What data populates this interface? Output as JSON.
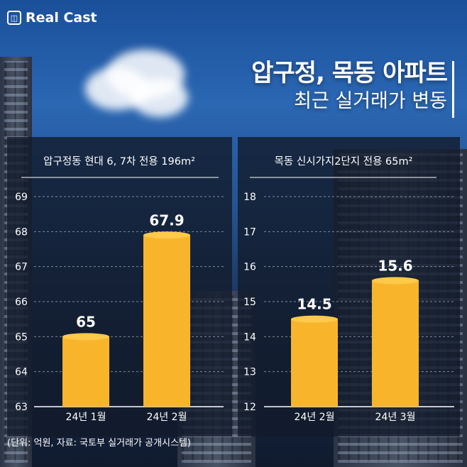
{
  "brand": {
    "name": "Real Cast"
  },
  "headline": {
    "line1": "압구정, 목동 아파트",
    "line2": "최근 실거래가 변동"
  },
  "footnote": "(단위: 억원, 자료: 국토부 실거래가 공개시스템)",
  "colors": {
    "bar": "#f8b52c",
    "bar_top": "#ffc94a",
    "text": "#ffffff",
    "grid": "#a9b4c6"
  },
  "chart_data": [
    {
      "type": "bar",
      "title": "압구정동 현대 6, 7차 전용 196m²",
      "categories": [
        "24년 1월",
        "24년 2월"
      ],
      "values": [
        65,
        67.9
      ],
      "value_labels": [
        "65",
        "67.9"
      ],
      "ylim": [
        63,
        69
      ],
      "yticks": [
        "63",
        "64",
        "65",
        "66",
        "67",
        "68",
        "69"
      ],
      "grid": true
    },
    {
      "type": "bar",
      "title": "목동 신시가지2단지 전용 65m²",
      "categories": [
        "24년 2월",
        "24년 3월"
      ],
      "values": [
        14.5,
        15.6
      ],
      "value_labels": [
        "14.5",
        "15.6"
      ],
      "ylim": [
        12,
        18
      ],
      "yticks": [
        "12",
        "13",
        "14",
        "15",
        "16",
        "17",
        "18"
      ],
      "grid": true
    }
  ]
}
